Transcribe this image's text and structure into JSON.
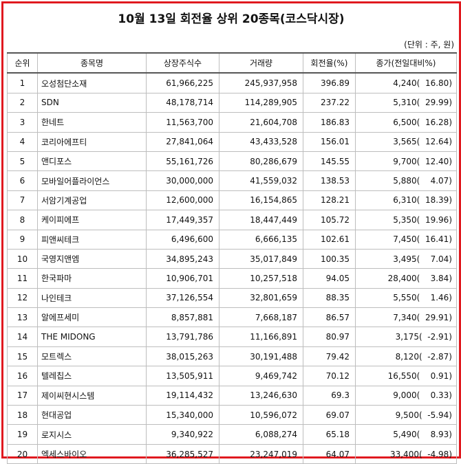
{
  "title": "10월 13일 회전율 상위 20종목(코스닥시장)",
  "unit_note": "(단위 : 주, 원)",
  "columns": [
    "순위",
    "종목명",
    "상장주식수",
    "거래량",
    "회전율(%)",
    "종가(전일대비%)"
  ],
  "rows": [
    {
      "rank": "1",
      "name": "오성첨단소재",
      "shares": "61,966,225",
      "volume": "245,937,958",
      "turnover": "396.89",
      "price": "4,240(  16.80)"
    },
    {
      "rank": "2",
      "name": "SDN",
      "shares": "48,178,714",
      "volume": "114,289,905",
      "turnover": "237.22",
      "price": "5,310(  29.99)"
    },
    {
      "rank": "3",
      "name": "한네트",
      "shares": "11,563,700",
      "volume": "21,604,708",
      "turnover": "186.83",
      "price": "6,500(  16.28)"
    },
    {
      "rank": "4",
      "name": "코리아에프티",
      "shares": "27,841,064",
      "volume": "43,433,528",
      "turnover": "156.01",
      "price": "3,565(  12.64)"
    },
    {
      "rank": "5",
      "name": "앤디포스",
      "shares": "55,161,726",
      "volume": "80,286,679",
      "turnover": "145.55",
      "price": "9,700(  12.40)"
    },
    {
      "rank": "6",
      "name": "모바일어플라이언스",
      "shares": "30,000,000",
      "volume": "41,559,032",
      "turnover": "138.53",
      "price": "5,880(    4.07)"
    },
    {
      "rank": "7",
      "name": "서암기계공업",
      "shares": "12,600,000",
      "volume": "16,154,865",
      "turnover": "128.21",
      "price": "6,310(  18.39)"
    },
    {
      "rank": "8",
      "name": "케이피에프",
      "shares": "17,449,357",
      "volume": "18,447,449",
      "turnover": "105.72",
      "price": "5,350(  19.96)"
    },
    {
      "rank": "9",
      "name": "피앤씨테크",
      "shares": "6,496,600",
      "volume": "6,666,135",
      "turnover": "102.61",
      "price": "7,450(  16.41)"
    },
    {
      "rank": "10",
      "name": "국영지앤엠",
      "shares": "34,895,243",
      "volume": "35,017,849",
      "turnover": "100.35",
      "price": "3,495(    7.04)"
    },
    {
      "rank": "11",
      "name": "한국파마",
      "shares": "10,906,701",
      "volume": "10,257,518",
      "turnover": "94.05",
      "price": "28,400(    3.84)"
    },
    {
      "rank": "12",
      "name": "나인테크",
      "shares": "37,126,554",
      "volume": "32,801,659",
      "turnover": "88.35",
      "price": "5,550(    1.46)"
    },
    {
      "rank": "13",
      "name": "알에프세미",
      "shares": "8,857,881",
      "volume": "7,668,187",
      "turnover": "86.57",
      "price": "7,340(  29.91)"
    },
    {
      "rank": "14",
      "name": "THE MIDONG",
      "shares": "13,791,786",
      "volume": "11,166,891",
      "turnover": "80.97",
      "price": "3,175(  -2.91)"
    },
    {
      "rank": "15",
      "name": "모트렉스",
      "shares": "38,015,263",
      "volume": "30,191,488",
      "turnover": "79.42",
      "price": "8,120(  -2.87)"
    },
    {
      "rank": "16",
      "name": "텔레칩스",
      "shares": "13,505,911",
      "volume": "9,469,742",
      "turnover": "70.12",
      "price": "16,550(    0.91)"
    },
    {
      "rank": "17",
      "name": "제이씨현시스템",
      "shares": "19,114,432",
      "volume": "13,246,630",
      "turnover": "69.3",
      "price": "9,000(    0.33)"
    },
    {
      "rank": "18",
      "name": "현대공업",
      "shares": "15,340,000",
      "volume": "10,596,072",
      "turnover": "69.07",
      "price": "9,500(  -5.94)"
    },
    {
      "rank": "19",
      "name": "로지시스",
      "shares": "9,340,922",
      "volume": "6,088,274",
      "turnover": "65.18",
      "price": "5,490(    8.93)"
    },
    {
      "rank": "20",
      "name": "엑세스바이오",
      "shares": "36,285,527",
      "volume": "23,247,019",
      "turnover": "64.07",
      "price": "33,400(  -4.98)"
    }
  ]
}
